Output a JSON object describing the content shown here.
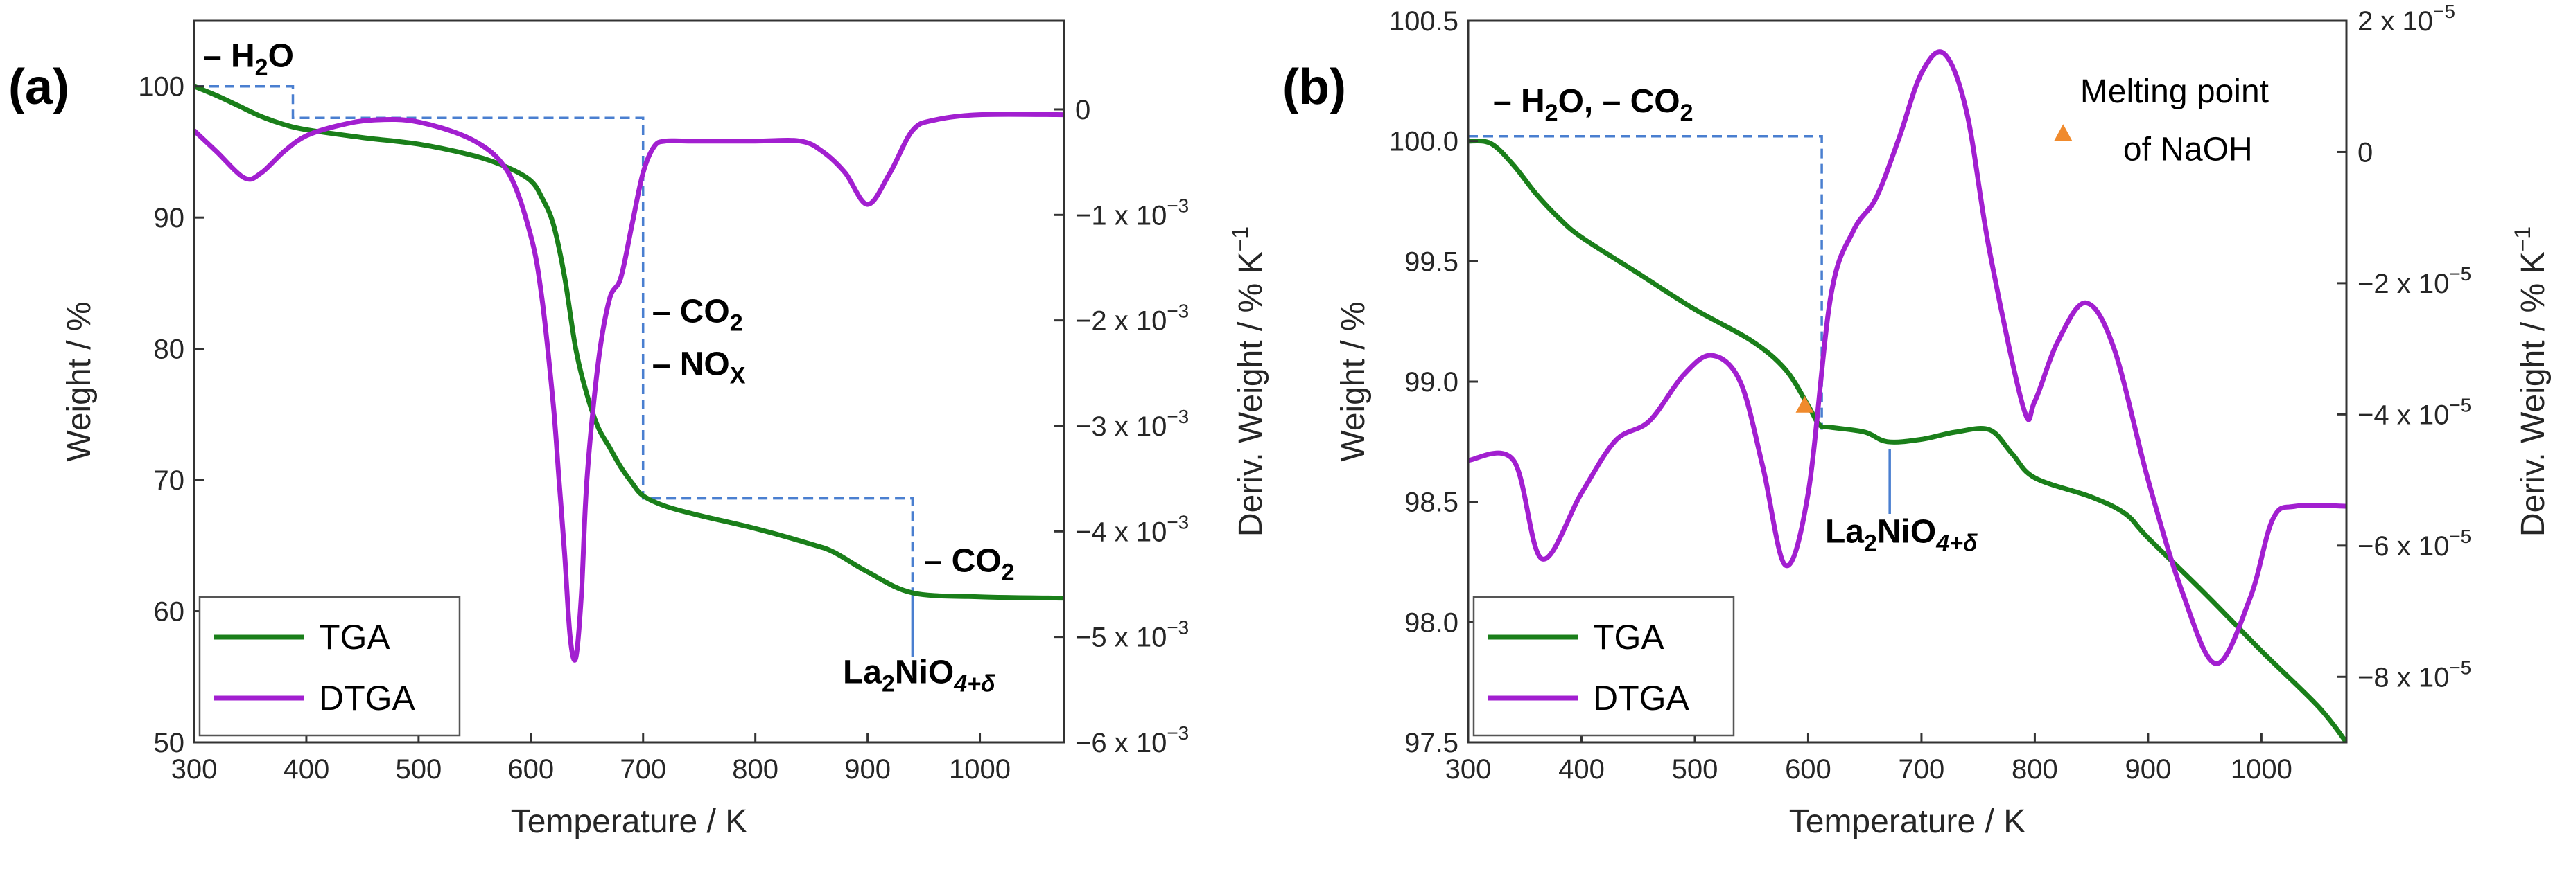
{
  "chart_data": [
    {
      "panel_label": "(a)",
      "type": "line",
      "xlabel": "Temperature / K",
      "ylabel": "Weight / %",
      "y2label": "Deriv. Weight / % K",
      "y2label_sup": "−1",
      "xlim": [
        300,
        1075
      ],
      "ylim": [
        50,
        105
      ],
      "y2lim": [
        -0.006,
        0.00084
      ],
      "xticks": [
        300,
        400,
        500,
        600,
        700,
        800,
        900,
        1000
      ],
      "yticks": [
        50,
        60,
        70,
        80,
        90,
        100
      ],
      "y2ticks": [
        {
          "value": 0,
          "label": "0",
          "exp": ""
        },
        {
          "value": -0.001,
          "label": "−1 x 10",
          "exp": "−3"
        },
        {
          "value": -0.002,
          "label": "−2 x 10",
          "exp": "−3"
        },
        {
          "value": -0.003,
          "label": "−3 x 10",
          "exp": "−3"
        },
        {
          "value": -0.004,
          "label": "−4 x 10",
          "exp": "−3"
        },
        {
          "value": -0.005,
          "label": "−5 x 10",
          "exp": "−3"
        },
        {
          "value": -0.006,
          "label": "−6 x 10",
          "exp": "−3"
        }
      ],
      "legend_position": "bottom-left",
      "series": [
        {
          "name": "TGA",
          "axis": "left",
          "color": "#1a7f1a",
          "x": [
            300,
            320,
            340,
            360,
            380,
            400,
            450,
            500,
            550,
            580,
            600,
            610,
            620,
            630,
            640,
            650,
            660,
            670,
            680,
            690,
            700,
            720,
            750,
            800,
            850,
            870,
            900,
            940,
            1000,
            1075
          ],
          "y": [
            100,
            99.3,
            98.5,
            97.7,
            97.1,
            96.7,
            96.1,
            95.6,
            94.7,
            93.8,
            92.8,
            91.5,
            89.5,
            85.5,
            80,
            76.5,
            74,
            72.5,
            71,
            69.8,
            68.8,
            68,
            67.3,
            66.3,
            65.1,
            64.5,
            63,
            61.4,
            61.1,
            61
          ]
        },
        {
          "name": "DTGA",
          "axis": "right",
          "color": "#a21fd0",
          "x": [
            300,
            320,
            345,
            360,
            380,
            400,
            430,
            460,
            500,
            550,
            580,
            600,
            610,
            620,
            625,
            630,
            635,
            640,
            645,
            650,
            660,
            670,
            680,
            690,
            700,
            710,
            720,
            740,
            800,
            840,
            860,
            880,
            900,
            920,
            940,
            960,
            1000,
            1075
          ],
          "y": [
            -0.0002,
            -0.0004,
            -0.00065,
            -0.0006,
            -0.0004,
            -0.00025,
            -0.00015,
            -0.0001,
            -0.00012,
            -0.0003,
            -0.0006,
            -0.0012,
            -0.0018,
            -0.0028,
            -0.0035,
            -0.0042,
            -0.005,
            -0.0052,
            -0.0046,
            -0.0035,
            -0.0024,
            -0.0018,
            -0.0016,
            -0.0011,
            -0.0006,
            -0.00035,
            -0.0003,
            -0.0003,
            -0.0003,
            -0.0003,
            -0.0004,
            -0.0006,
            -0.0009,
            -0.0006,
            -0.0002,
            -0.0001,
            -5e-05,
            -5e-05
          ]
        }
      ],
      "steps": [
        {
          "x": [
            300,
            388,
            388,
            700,
            700,
            940,
            940
          ],
          "y": [
            100,
            100,
            97.6,
            97.6,
            68.6,
            68.6,
            61.5
          ],
          "color": "#4a7fd0"
        }
      ],
      "annotations": [
        {
          "text": "– H",
          "sub": "2",
          "after": "O",
          "x": 308,
          "y": 101.5
        },
        {
          "text": "– CO",
          "sub": "2",
          "after": "",
          "x": 708,
          "y": 82
        },
        {
          "text": "– NO",
          "sub": "X",
          "after": "",
          "x": 708,
          "y": 78
        },
        {
          "text": "– CO",
          "sub": "2",
          "after": "",
          "x": 950,
          "y": 63
        },
        {
          "text": "La",
          "sub": "2",
          "after": "NiO",
          "sub2": "4+δ",
          "x": 878,
          "y": 54.5
        }
      ],
      "pointer_lines": [
        {
          "x": [
            940,
            940
          ],
          "y": [
            61.5,
            56.5
          ],
          "color": "#4a7fd0"
        }
      ]
    },
    {
      "panel_label": "(b)",
      "type": "line",
      "xlabel": "Temperature / K",
      "ylabel": "Weight / %",
      "y2label": "Deriv. Weight / % K",
      "y2label_sup": "−1",
      "xlim": [
        300,
        1075
      ],
      "ylim": [
        97.5,
        100.5
      ],
      "y2lim": [
        -9e-05,
        2e-05
      ],
      "xticks": [
        300,
        400,
        500,
        600,
        700,
        800,
        900,
        1000
      ],
      "yticks": [
        97.5,
        98.0,
        98.5,
        99.0,
        99.5,
        100.0,
        100.5
      ],
      "yticklabels": [
        "97.5",
        "98.0",
        "98.5",
        "99.0",
        "99.5",
        "100.0",
        "100.5"
      ],
      "y2ticks": [
        {
          "value": 2e-05,
          "label": "2 x 10",
          "exp": "−5"
        },
        {
          "value": 0,
          "label": "0",
          "exp": ""
        },
        {
          "value": -2e-05,
          "label": "−2 x 10",
          "exp": "−5"
        },
        {
          "value": -4e-05,
          "label": "−4 x 10",
          "exp": "−5"
        },
        {
          "value": -6e-05,
          "label": "−6 x 10",
          "exp": "−5"
        },
        {
          "value": -8e-05,
          "label": "−8 x 10",
          "exp": "−5"
        }
      ],
      "legend_position": "bottom-left",
      "series": [
        {
          "name": "TGA",
          "axis": "left",
          "color": "#1a7f1a",
          "x": [
            300,
            320,
            340,
            360,
            380,
            400,
            450,
            500,
            550,
            580,
            600,
            610,
            620,
            650,
            670,
            700,
            730,
            760,
            780,
            800,
            850,
            880,
            900,
            950,
            1000,
            1050,
            1075
          ],
          "y": [
            100,
            99.99,
            99.9,
            99.78,
            99.68,
            99.6,
            99.45,
            99.3,
            99.17,
            99.05,
            98.9,
            98.82,
            98.81,
            98.79,
            98.75,
            98.76,
            98.79,
            98.8,
            98.7,
            98.6,
            98.52,
            98.45,
            98.35,
            98.12,
            97.88,
            97.65,
            97.5
          ]
        },
        {
          "name": "DTGA",
          "axis": "right",
          "color": "#a21fd0",
          "x": [
            300,
            340,
            365,
            400,
            430,
            460,
            490,
            515,
            540,
            560,
            580,
            600,
            620,
            640,
            660,
            680,
            700,
            720,
            740,
            760,
            790,
            800,
            820,
            845,
            870,
            900,
            930,
            960,
            990,
            1010,
            1030,
            1075
          ],
          "y": [
            -4.7e-05,
            -4.7e-05,
            -6.2e-05,
            -5.2e-05,
            -4.4e-05,
            -4.1e-05,
            -3.4e-05,
            -3.1e-05,
            -3.5e-05,
            -4.8e-05,
            -6.3e-05,
            -5.2e-05,
            -2.2e-05,
            -1.2e-05,
            -7e-06,
            2e-06,
            1.2e-05,
            1.5e-05,
            6e-06,
            -1.5e-05,
            -3.9e-05,
            -3.8e-05,
            -2.9e-05,
            -2.3e-05,
            -3e-05,
            -5e-05,
            -6.7e-05,
            -7.8e-05,
            -6.8e-05,
            -5.6e-05,
            -5.4e-05,
            -5.4e-05
          ]
        }
      ],
      "steps": [
        {
          "x": [
            300,
            612,
            612
          ],
          "y": [
            100.02,
            100.02,
            98.8
          ],
          "color": "#4a7fd0"
        }
      ],
      "markers": [
        {
          "x": 597,
          "y": 98.9,
          "color": "#f08a2c"
        },
        {
          "x": 825,
          "y": 100.03,
          "color": "#f08a2c"
        }
      ],
      "annotations": [
        {
          "text": "– H",
          "sub": "2",
          "after": "O, – CO",
          "sub2": "2",
          "x": 322,
          "y": 100.12
        },
        {
          "text": "La",
          "sub": "2",
          "after": "NiO",
          "sub2": "4+δ",
          "x": 615,
          "y": 98.33
        }
      ],
      "plain_annotations": [
        {
          "text": "Melting point",
          "x": 840,
          "y": 100.16
        },
        {
          "text": "of NaOH",
          "x": 878,
          "y": 99.92
        }
      ],
      "pointer_lines": [
        {
          "x": [
            672,
            672
          ],
          "y": [
            98.72,
            98.45
          ],
          "color": "#4a7fd0"
        }
      ]
    }
  ]
}
